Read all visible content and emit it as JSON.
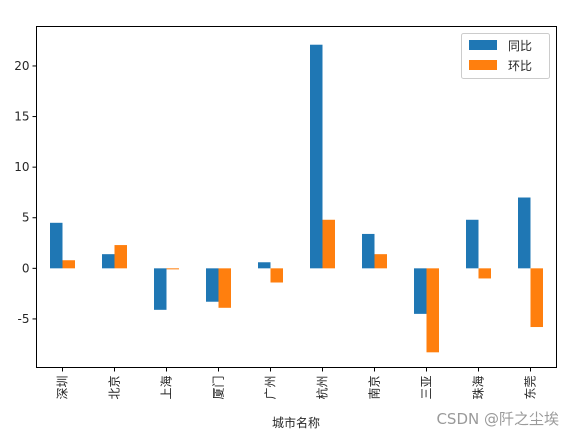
{
  "chart_data": {
    "type": "bar",
    "categories": [
      "深圳",
      "北京",
      "上海",
      "厦门",
      "广州",
      "杭州",
      "南京",
      "三亚",
      "珠海",
      "东莞"
    ],
    "series": [
      {
        "name": "同比",
        "values": [
          4.5,
          1.4,
          -4.1,
          -3.3,
          0.6,
          22.1,
          3.4,
          -4.5,
          4.8,
          7.0
        ],
        "color": "#1f77b4"
      },
      {
        "name": "环比",
        "values": [
          0.8,
          2.3,
          -0.1,
          -3.9,
          -1.4,
          4.8,
          1.4,
          -8.3,
          -1.0,
          -5.8
        ],
        "color": "#ff7f0e"
      }
    ],
    "xlabel": "城市名称",
    "ylabel": "",
    "ylim": [
      -9.8,
      23.9
    ],
    "yticks": [
      -5,
      0,
      5,
      10,
      15,
      20
    ],
    "legend_position": "top-right"
  },
  "watermark": "CSDN @阡之尘埃"
}
